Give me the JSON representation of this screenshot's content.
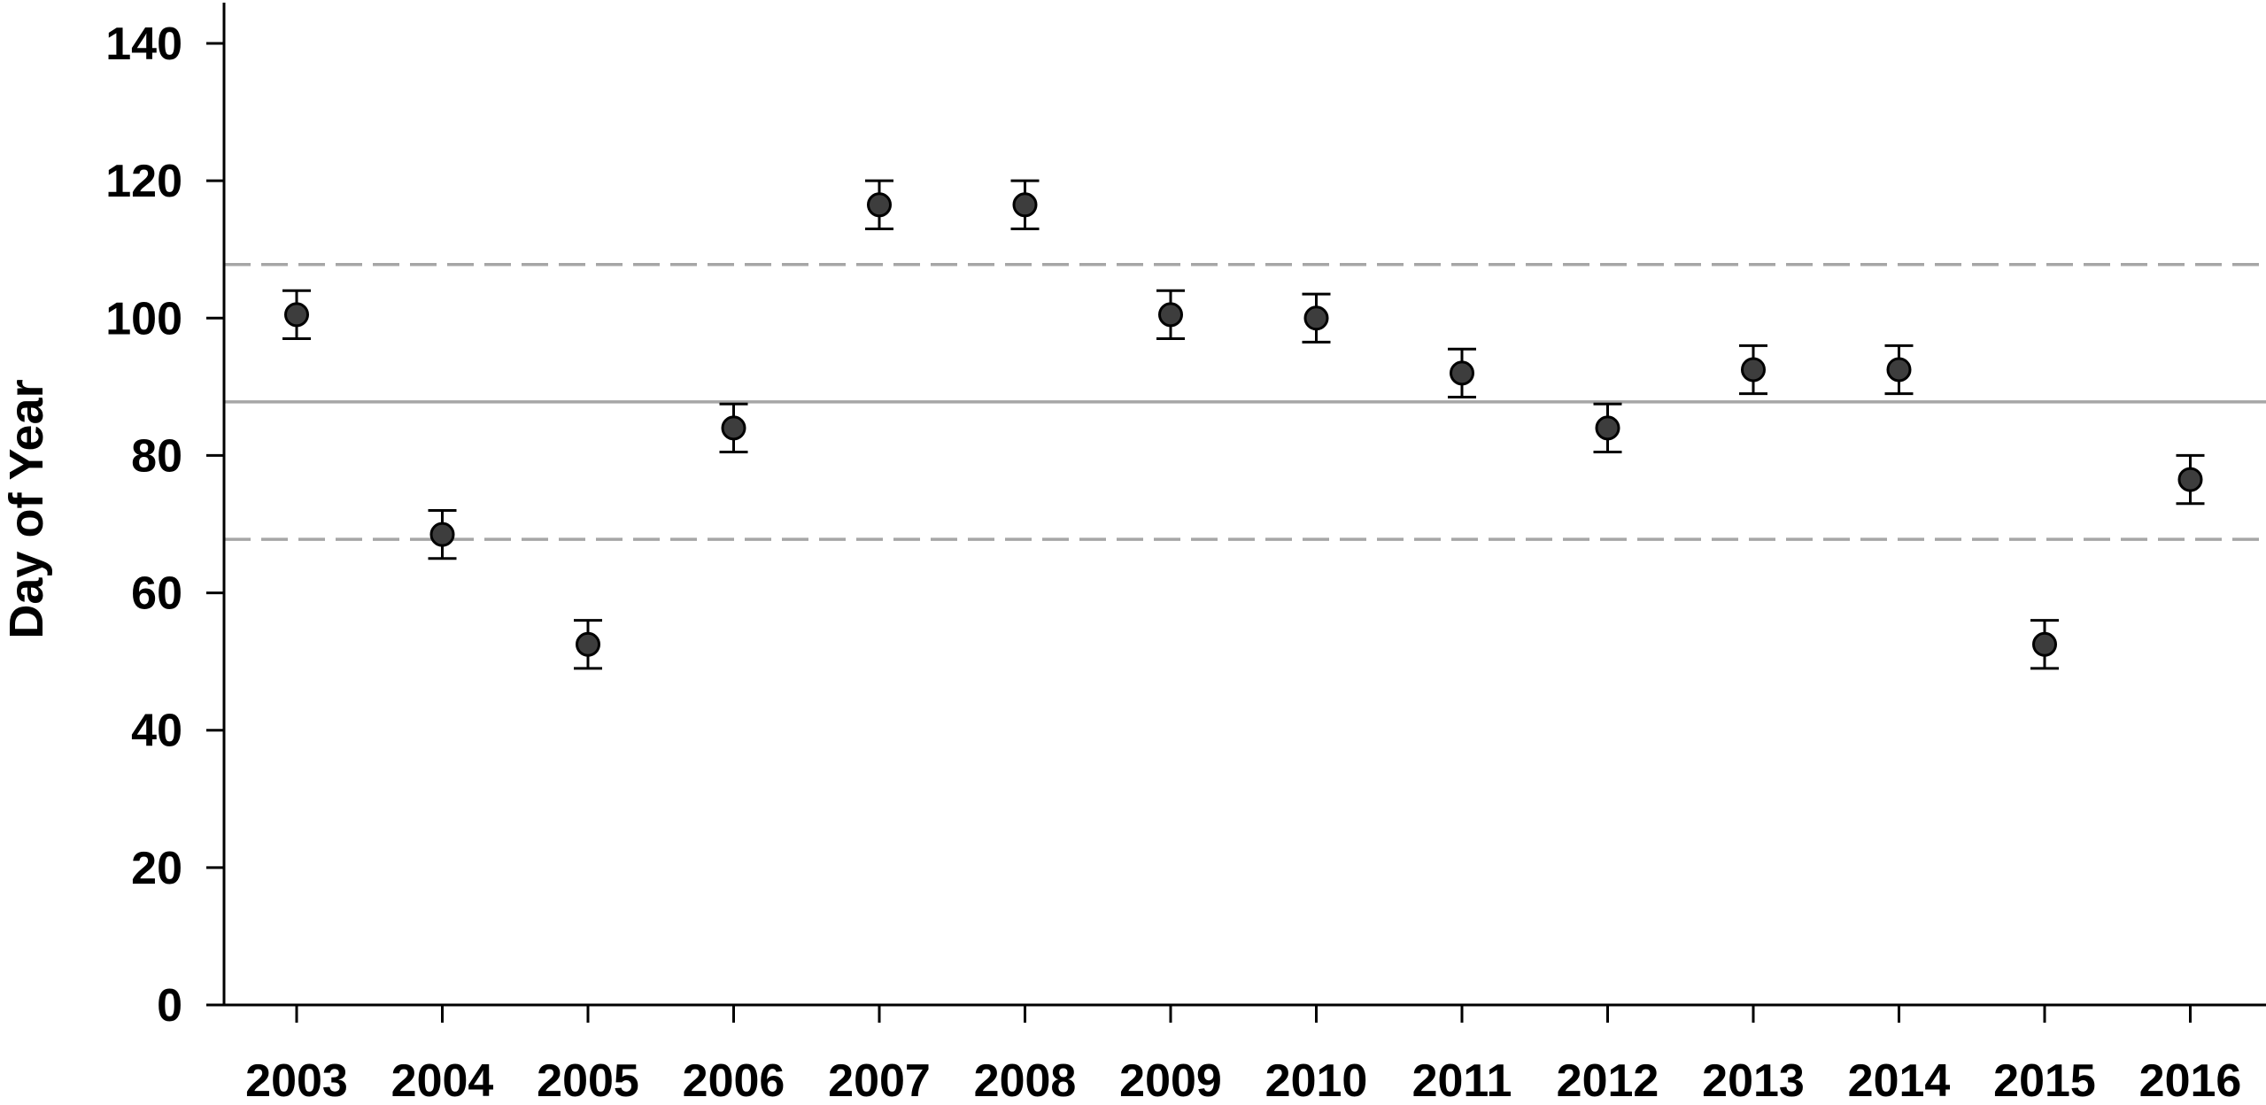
{
  "chart_data": {
    "type": "scatter",
    "title": "",
    "xlabel": "",
    "ylabel": "Day of Year",
    "ylim": [
      0,
      150
    ],
    "yticks": [
      0,
      20,
      40,
      60,
      80,
      100,
      120,
      140
    ],
    "categories": [
      "2003",
      "2004",
      "2005",
      "2006",
      "2007",
      "2008",
      "2009",
      "2010",
      "2011",
      "2012",
      "2013",
      "2014",
      "2015",
      "2016"
    ],
    "series": [
      {
        "values": [
          100.5,
          68.5,
          52.5,
          84,
          116.5,
          116.5,
          100.5,
          100,
          92,
          84,
          92.5,
          92.5,
          52.5,
          76.5
        ],
        "error_low": [
          97,
          65,
          49,
          80.5,
          113,
          113,
          97,
          96.5,
          88.5,
          80.5,
          89,
          89,
          49,
          73
        ],
        "error_high": [
          104,
          72,
          56,
          87.5,
          120,
          120,
          104,
          103.5,
          95.5,
          87.5,
          96,
          96,
          56,
          80
        ],
        "marker_color": "#3d3d3d"
      }
    ],
    "reference_lines": [
      {
        "style": "solid",
        "value": 87.8,
        "color": "#a6a6a6"
      },
      {
        "style": "dashed",
        "value": 107.8,
        "color": "#a6a6a6"
      },
      {
        "style": "dashed",
        "value": 67.8,
        "color": "#a6a6a6"
      }
    ],
    "grid": false,
    "legend": "none"
  }
}
